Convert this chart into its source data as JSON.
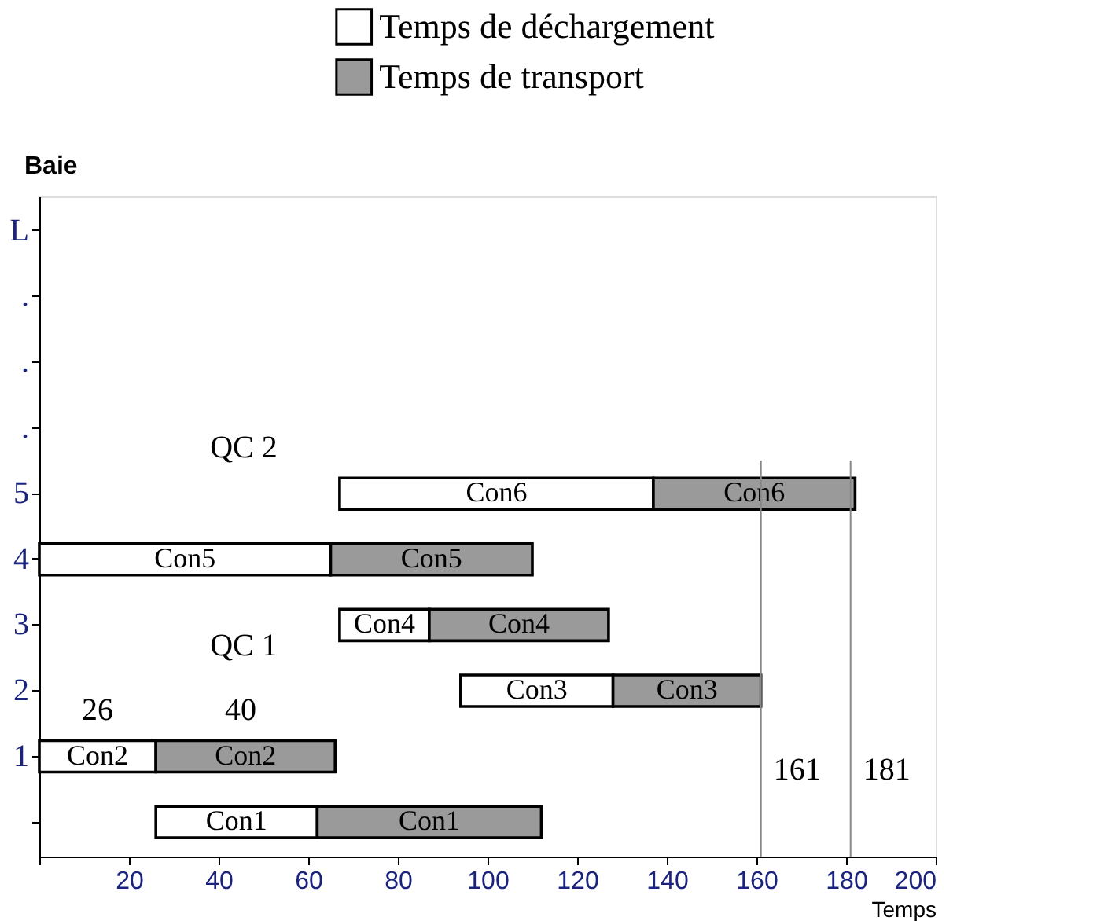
{
  "chart_data": {
    "type": "bar",
    "orientation": "horizontal",
    "xlabel": "Temps",
    "ylabel": "Baie",
    "categories": [
      "L",
      ".",
      ".",
      ".",
      "5",
      "4",
      "3",
      "2",
      "1",
      null
    ],
    "series": [
      {
        "name": "Temps de déchargement",
        "color": "#ffffff",
        "base": [
          null,
          null,
          null,
          null,
          67,
          0,
          67,
          94,
          0,
          26
        ],
        "values": [
          null,
          null,
          null,
          null,
          70,
          65,
          20,
          34,
          26,
          36
        ],
        "value_labels": [
          null,
          null,
          null,
          null,
          "Con6",
          "Con5",
          "Con4",
          "Con3",
          "Con2",
          "Con1"
        ]
      },
      {
        "name": "Temps de transport",
        "color": "#9a9a9a",
        "base": [
          null,
          null,
          null,
          null,
          137,
          65,
          87,
          128,
          26,
          62
        ],
        "values": [
          null,
          null,
          null,
          null,
          45,
          45,
          40,
          33,
          40,
          50
        ],
        "value_labels": [
          null,
          null,
          null,
          null,
          "Con6",
          "Con5",
          "Con4",
          "Con3",
          "Con2",
          "Con1"
        ]
      }
    ],
    "xlim": [
      0,
      200
    ],
    "xticks": [
      {
        "value": 0,
        "label": null
      },
      20,
      40,
      60,
      80,
      100,
      120,
      140,
      160,
      180,
      200
    ],
    "ref_lines": [
      {
        "axis": "x",
        "value": 161,
        "label": "161"
      },
      {
        "axis": "x",
        "value": 181,
        "label": "181"
      }
    ],
    "annotations": [
      "QC 2",
      "QC 1",
      "26",
      "40"
    ],
    "legend": "top",
    "grid": false
  }
}
